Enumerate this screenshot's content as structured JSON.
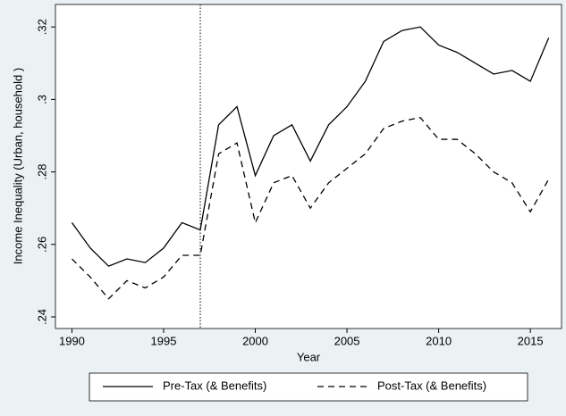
{
  "chart_data": {
    "type": "line",
    "x_label": "Year",
    "y_label": "Income Inequality (Urban, household )",
    "x": [
      1990,
      1991,
      1992,
      1993,
      1994,
      1995,
      1996,
      1997,
      1998,
      1999,
      2000,
      2001,
      2002,
      2003,
      2004,
      2005,
      2006,
      2007,
      2008,
      2009,
      2010,
      2011,
      2012,
      2013,
      2014,
      2015,
      2016
    ],
    "series": [
      {
        "name": "Pre-Tax (& Benefits)",
        "color": "#000000",
        "dash": "solid",
        "values": [
          0.266,
          0.259,
          0.254,
          0.256,
          0.255,
          0.259,
          0.266,
          0.264,
          0.293,
          0.298,
          0.279,
          0.29,
          0.293,
          0.283,
          0.293,
          0.298,
          0.305,
          0.316,
          0.319,
          0.32,
          0.315,
          0.313,
          0.31,
          0.307,
          0.308,
          0.305,
          0.317
        ]
      },
      {
        "name": "Post-Tax (& Benefits)",
        "color": "#000000",
        "dash": "dashed",
        "values": [
          0.256,
          0.251,
          0.245,
          0.25,
          0.248,
          0.251,
          0.257,
          0.257,
          0.285,
          0.288,
          0.266,
          0.277,
          0.279,
          0.27,
          0.277,
          0.281,
          0.285,
          0.292,
          0.294,
          0.295,
          0.289,
          0.289,
          0.285,
          0.28,
          0.277,
          0.269,
          0.278
        ]
      }
    ],
    "xline": 1997,
    "xlim": [
      1989.1,
      2016.7
    ],
    "xticks": [
      1990,
      1995,
      2000,
      2005,
      2010,
      2015
    ],
    "ylim": [
      0.2368,
      0.3262
    ],
    "yticks": [
      {
        "value": 0.24,
        "label": ".24"
      },
      {
        "value": 0.26,
        "label": ".26"
      },
      {
        "value": 0.28,
        "label": ".28"
      },
      {
        "value": 0.3,
        "label": ".3"
      },
      {
        "value": 0.32,
        "label": ".32"
      }
    ],
    "grid": false,
    "legend": "bottom"
  }
}
